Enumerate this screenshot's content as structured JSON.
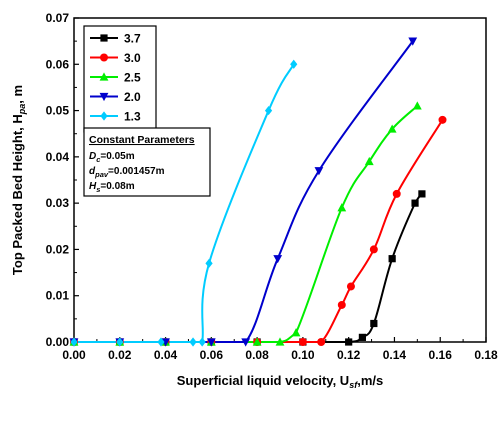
{
  "chart_data": {
    "type": "line",
    "xlabel": "Superficial liquid velocity, U",
    "xlabel_sub": "sf",
    "xlabel_unit": ",m/s",
    "ylabel": "Top Packed Bed Height, H",
    "ylabel_sub": "pa",
    "ylabel_unit": ", m",
    "xlim": [
      0.0,
      0.18
    ],
    "ylim": [
      0.0,
      0.07
    ],
    "xticks": [
      "0.00",
      "0.02",
      "0.04",
      "0.06",
      "0.08",
      "0.10",
      "0.12",
      "0.14",
      "0.16",
      "0.18"
    ],
    "yticks": [
      "0.00",
      "0.01",
      "0.02",
      "0.03",
      "0.04",
      "0.05",
      "0.06",
      "0.07"
    ],
    "legend_position": "top-left",
    "series": [
      {
        "name": "3.7",
        "color": "#000000",
        "marker": "square",
        "points": [
          [
            0.0,
            0.0
          ],
          [
            0.02,
            0.0
          ],
          [
            0.04,
            0.0
          ],
          [
            0.06,
            0.0
          ],
          [
            0.08,
            0.0
          ],
          [
            0.1,
            0.0
          ],
          [
            0.12,
            0.0
          ],
          [
            0.126,
            0.001
          ],
          [
            0.131,
            0.004
          ],
          [
            0.139,
            0.018
          ],
          [
            0.149,
            0.03
          ],
          [
            0.152,
            0.032
          ]
        ]
      },
      {
        "name": "3.0",
        "color": "#ff0000",
        "marker": "circle",
        "points": [
          [
            0.0,
            0.0
          ],
          [
            0.02,
            0.0
          ],
          [
            0.04,
            0.0
          ],
          [
            0.06,
            0.0
          ],
          [
            0.08,
            0.0
          ],
          [
            0.1,
            0.0
          ],
          [
            0.108,
            0.0
          ],
          [
            0.117,
            0.008
          ],
          [
            0.121,
            0.012
          ],
          [
            0.131,
            0.02
          ],
          [
            0.141,
            0.032
          ],
          [
            0.161,
            0.048
          ]
        ]
      },
      {
        "name": "2.5",
        "color": "#00ee00",
        "marker": "triangle-up",
        "points": [
          [
            0.0,
            0.0
          ],
          [
            0.02,
            0.0
          ],
          [
            0.04,
            0.0
          ],
          [
            0.06,
            0.0
          ],
          [
            0.08,
            0.0
          ],
          [
            0.09,
            0.0
          ],
          [
            0.097,
            0.002
          ],
          [
            0.117,
            0.029
          ],
          [
            0.129,
            0.039
          ],
          [
            0.139,
            0.046
          ],
          [
            0.15,
            0.051
          ]
        ]
      },
      {
        "name": "2.0",
        "color": "#0000cc",
        "marker": "triangle-down",
        "points": [
          [
            0.0,
            0.0
          ],
          [
            0.02,
            0.0
          ],
          [
            0.04,
            0.0
          ],
          [
            0.06,
            0.0
          ],
          [
            0.075,
            0.0
          ],
          [
            0.089,
            0.018
          ],
          [
            0.107,
            0.037
          ],
          [
            0.148,
            0.065
          ]
        ]
      },
      {
        "name": "1.3",
        "color": "#00ccff",
        "marker": "diamond",
        "points": [
          [
            0.0,
            0.0
          ],
          [
            0.02,
            0.0
          ],
          [
            0.038,
            0.0
          ],
          [
            0.052,
            0.0
          ],
          [
            0.056,
            0.0
          ],
          [
            0.059,
            0.017
          ],
          [
            0.085,
            0.05
          ],
          [
            0.096,
            0.06
          ]
        ]
      }
    ],
    "annotation": {
      "title": "Constant Parameters",
      "lines": [
        {
          "sym": "D",
          "sub": "c",
          "val": "=0.05m"
        },
        {
          "sym": "d",
          "sub": "pav",
          "val": "=0.001457m"
        },
        {
          "sym": "H",
          "sub": "s",
          "val": "=0.08m"
        }
      ]
    }
  }
}
